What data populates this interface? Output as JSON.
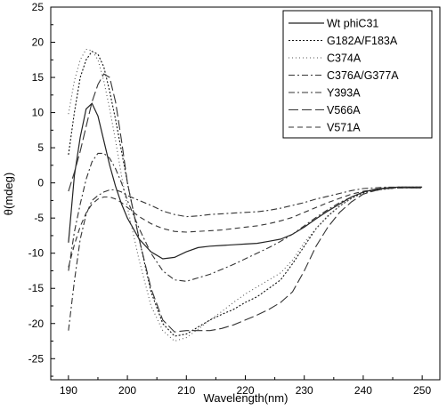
{
  "chart_data": {
    "type": "line",
    "xlabel": "Wavelength(nm)",
    "ylabel": "θ(mdeg)",
    "xlim": [
      187,
      253
    ],
    "ylim": [
      -28,
      25
    ],
    "x_ticks": [
      "190",
      "200",
      "210",
      "220",
      "230",
      "240",
      "250"
    ],
    "y_ticks": [
      "25",
      "20",
      "15",
      "10",
      "5",
      "0",
      "-5",
      "-10",
      "-15",
      "-20",
      "-25"
    ],
    "grid": false,
    "legend_position": "top-right",
    "series": [
      {
        "name": "Wt phiC31",
        "style": "solid",
        "x": [
          190,
          191,
          192,
          193,
          194,
          195,
          196,
          197,
          198,
          199,
          200,
          202,
          204,
          206,
          208,
          210,
          212,
          214,
          216,
          218,
          220,
          222,
          224,
          226,
          228,
          230,
          232,
          234,
          236,
          238,
          240,
          242,
          244,
          246,
          248,
          250
        ],
        "y": [
          -8.5,
          1.0,
          6.5,
          10.5,
          11.3,
          9.5,
          6.0,
          2.5,
          -0.5,
          -3.0,
          -5.0,
          -8.0,
          -9.8,
          -10.8,
          -10.6,
          -9.8,
          -9.2,
          -9.0,
          -8.9,
          -8.8,
          -8.7,
          -8.6,
          -8.3,
          -8.0,
          -7.3,
          -6.3,
          -5.1,
          -4.0,
          -3.0,
          -2.0,
          -1.3,
          -0.9,
          -0.7,
          -0.6,
          -0.6,
          -0.6
        ]
      },
      {
        "name": "G182A/F183A",
        "style": "dotted",
        "x": [
          190,
          191,
          192,
          193,
          194,
          195,
          196,
          197,
          198,
          199,
          200,
          202,
          204,
          206,
          208,
          210,
          212,
          214,
          216,
          218,
          220,
          222,
          224,
          226,
          228,
          230,
          232,
          234,
          236,
          238,
          240,
          242,
          244,
          246,
          248,
          250
        ],
        "y": [
          4.0,
          10.0,
          15.0,
          17.5,
          18.7,
          18.3,
          16.5,
          13.0,
          9.0,
          4.5,
          0.0,
          -8.0,
          -15.5,
          -20.0,
          -21.8,
          -21.5,
          -20.5,
          -19.5,
          -18.7,
          -18.0,
          -17.0,
          -16.2,
          -15.0,
          -13.8,
          -11.5,
          -9.0,
          -6.5,
          -4.7,
          -3.3,
          -2.2,
          -1.4,
          -1.0,
          -0.8,
          -0.6,
          -0.6,
          -0.6
        ]
      },
      {
        "name": "C374A",
        "style": "dotted-light",
        "x": [
          190,
          191,
          192,
          193,
          194,
          195,
          196,
          197,
          198,
          199,
          200,
          202,
          204,
          206,
          208,
          210,
          212,
          214,
          216,
          218,
          220,
          222,
          224,
          226,
          228,
          230,
          232,
          234,
          236,
          238,
          240,
          242,
          244,
          246,
          248,
          250
        ],
        "y": [
          9.8,
          14.5,
          17.5,
          19.0,
          18.8,
          17.5,
          14.5,
          10.5,
          6.0,
          1.0,
          -3.5,
          -11.0,
          -17.5,
          -21.0,
          -22.5,
          -22.0,
          -20.8,
          -19.5,
          -18.3,
          -17.0,
          -15.8,
          -14.8,
          -13.8,
          -12.8,
          -11.0,
          -8.5,
          -6.5,
          -4.8,
          -3.3,
          -2.2,
          -1.5,
          -1.1,
          -0.9,
          -0.7,
          -0.7,
          -0.7
        ]
      },
      {
        "name": "C376A/G377A",
        "style": "dashdot",
        "x": [
          190,
          191,
          192,
          193,
          194,
          195,
          196,
          197,
          198,
          199,
          200,
          202,
          204,
          206,
          208,
          210,
          212,
          214,
          216,
          218,
          220,
          222,
          224,
          226,
          228,
          230,
          232,
          234,
          236,
          238,
          240,
          242,
          244,
          246,
          248,
          250
        ],
        "y": [
          -21.0,
          -14.0,
          -8.0,
          -4.5,
          -2.5,
          -1.8,
          -1.3,
          -1.0,
          -1.0,
          -1.3,
          -1.8,
          -2.5,
          -3.2,
          -4.0,
          -4.5,
          -4.8,
          -4.7,
          -4.5,
          -4.4,
          -4.3,
          -4.2,
          -4.1,
          -3.9,
          -3.6,
          -3.2,
          -2.8,
          -2.3,
          -1.9,
          -1.5,
          -1.1,
          -0.8,
          -0.7,
          -0.6,
          -0.6,
          -0.6,
          -0.6
        ]
      },
      {
        "name": "Y393A",
        "style": "dashdot",
        "x": [
          190,
          191,
          192,
          193,
          194,
          195,
          196,
          197,
          198,
          199,
          200,
          202,
          204,
          206,
          208,
          210,
          212,
          214,
          216,
          218,
          220,
          222,
          224,
          226,
          228,
          230,
          232,
          234,
          236,
          238,
          240,
          242,
          244,
          246,
          248,
          250
        ],
        "y": [
          -12.5,
          -7.0,
          -3.0,
          0.5,
          3.0,
          4.2,
          4.2,
          3.5,
          2.0,
          0.0,
          -2.5,
          -6.5,
          -10.0,
          -12.5,
          -13.8,
          -14.0,
          -13.5,
          -13.0,
          -12.3,
          -11.6,
          -10.8,
          -10.0,
          -9.2,
          -8.3,
          -7.3,
          -6.1,
          -4.9,
          -3.8,
          -2.8,
          -2.0,
          -1.3,
          -1.0,
          -0.8,
          -0.7,
          -0.7,
          -0.7
        ]
      },
      {
        "name": "V566A",
        "style": "longdash",
        "x": [
          190,
          191,
          192,
          193,
          194,
          195,
          196,
          197,
          198,
          199,
          200,
          202,
          204,
          206,
          208,
          210,
          212,
          214,
          216,
          218,
          220,
          222,
          224,
          226,
          228,
          230,
          232,
          234,
          236,
          238,
          240,
          242,
          244,
          246,
          248,
          250
        ],
        "y": [
          -1.2,
          1.5,
          4.5,
          8.0,
          11.5,
          14.0,
          15.5,
          15.0,
          11.5,
          6.0,
          0.0,
          -8.0,
          -15.0,
          -19.5,
          -21.2,
          -21.0,
          -21.0,
          -21.0,
          -20.7,
          -20.2,
          -19.5,
          -18.8,
          -18.0,
          -17.0,
          -15.5,
          -12.5,
          -9.0,
          -6.3,
          -4.2,
          -2.7,
          -1.6,
          -1.1,
          -0.8,
          -0.7,
          -0.7,
          -0.7
        ]
      },
      {
        "name": "V571A",
        "style": "dashed",
        "x": [
          190,
          191,
          192,
          193,
          194,
          195,
          196,
          197,
          198,
          199,
          200,
          202,
          204,
          206,
          208,
          210,
          212,
          214,
          216,
          218,
          220,
          222,
          224,
          226,
          228,
          230,
          232,
          234,
          236,
          238,
          240,
          242,
          244,
          246,
          248,
          250
        ],
        "y": [
          -12.0,
          -8.8,
          -6.2,
          -4.3,
          -3.0,
          -2.3,
          -2.0,
          -2.0,
          -2.3,
          -2.8,
          -3.5,
          -4.8,
          -5.8,
          -6.5,
          -6.9,
          -7.0,
          -6.9,
          -6.8,
          -6.7,
          -6.5,
          -6.3,
          -6.1,
          -5.8,
          -5.4,
          -4.9,
          -4.2,
          -3.5,
          -2.8,
          -2.2,
          -1.6,
          -1.2,
          -0.9,
          -0.8,
          -0.7,
          -0.7,
          -0.7
        ]
      }
    ]
  }
}
